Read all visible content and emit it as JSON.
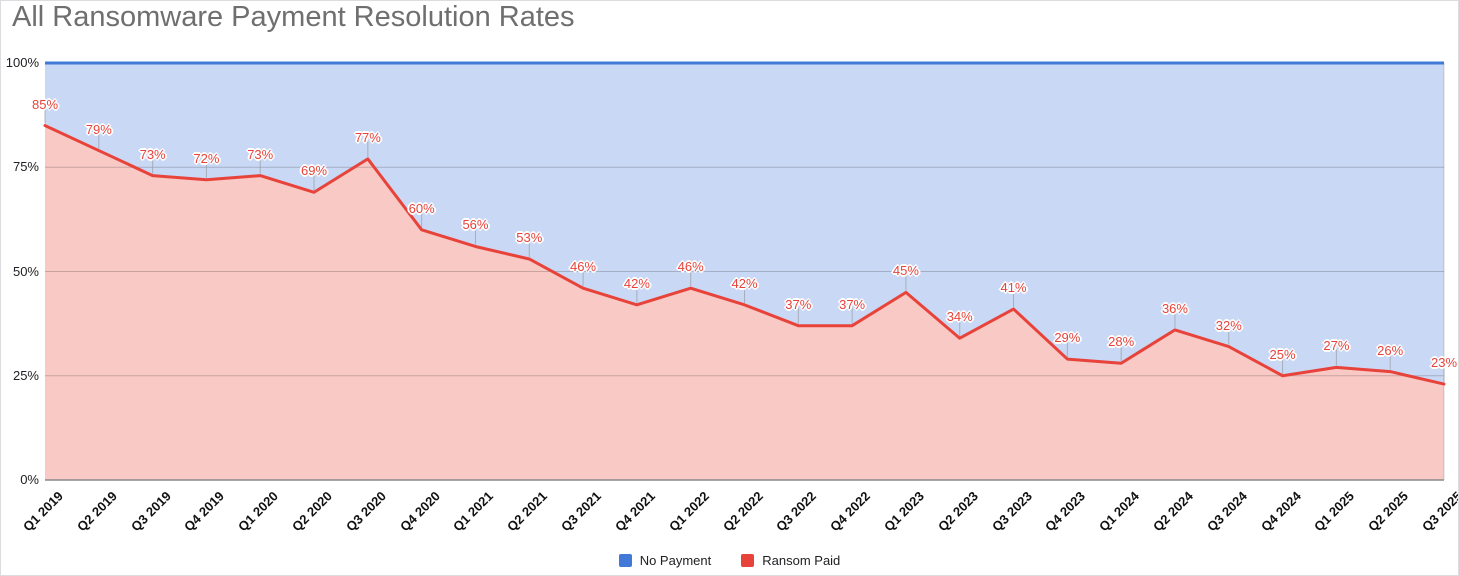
{
  "title": "All Ransomware Payment Resolution Rates",
  "legend": {
    "items": [
      {
        "label": "No Payment",
        "color": "#4079d8"
      },
      {
        "label": "Ransom Paid",
        "color": "#e8433a"
      }
    ]
  },
  "chart_data": {
    "type": "area",
    "stacked": true,
    "title": "All Ransomware Payment Resolution Rates",
    "categories": [
      "Q1 2019",
      "Q2 2019",
      "Q3 2019",
      "Q4 2019",
      "Q1 2020",
      "Q2 2020",
      "Q3 2020",
      "Q4 2020",
      "Q1 2021",
      "Q2 2021",
      "Q3 2021",
      "Q4 2021",
      "Q1 2022",
      "Q2 2022",
      "Q3 2022",
      "Q4 2022",
      "Q1 2023",
      "Q2 2023",
      "Q3 2023",
      "Q4 2023",
      "Q1 2024",
      "Q2 2024",
      "Q3 2024",
      "Q4 2024",
      "Q1 2025",
      "Q2 2025",
      "Q3 2025"
    ],
    "series": [
      {
        "name": "No Payment",
        "color": "#4079d8",
        "fill": "#c9d8f4",
        "values": [
          15,
          21,
          27,
          28,
          27,
          31,
          23,
          40,
          44,
          47,
          54,
          58,
          54,
          58,
          63,
          63,
          55,
          66,
          59,
          71,
          72,
          64,
          68,
          75,
          73,
          74,
          77
        ]
      },
      {
        "name": "Ransom Paid",
        "color": "#e8433a",
        "fill": "#f8c9c5",
        "values": [
          85,
          79,
          73,
          72,
          73,
          69,
          77,
          60,
          56,
          53,
          46,
          42,
          46,
          42,
          37,
          37,
          45,
          34,
          41,
          29,
          28,
          36,
          32,
          25,
          27,
          26,
          23
        ]
      }
    ],
    "data_labels": {
      "series": "Ransom Paid",
      "labels": [
        "85%",
        "79%",
        "73%",
        "72%",
        "73%",
        "69%",
        "77%",
        "60%",
        "56%",
        "53%",
        "46%",
        "42%",
        "46%",
        "42%",
        "37%",
        "37%",
        "45%",
        "34%",
        "41%",
        "29%",
        "28%",
        "36%",
        "32%",
        "25%",
        "27%",
        "26%",
        "23%"
      ]
    },
    "xlabel": "",
    "ylabel": "",
    "ylim": [
      0,
      100
    ],
    "y_ticks": [
      {
        "value": 0,
        "label": "0%"
      },
      {
        "value": 25,
        "label": "25%"
      },
      {
        "value": 50,
        "label": "50%"
      },
      {
        "value": 75,
        "label": "75%"
      },
      {
        "value": 100,
        "label": "100%"
      }
    ],
    "grid": true,
    "legend_position": "bottom"
  }
}
